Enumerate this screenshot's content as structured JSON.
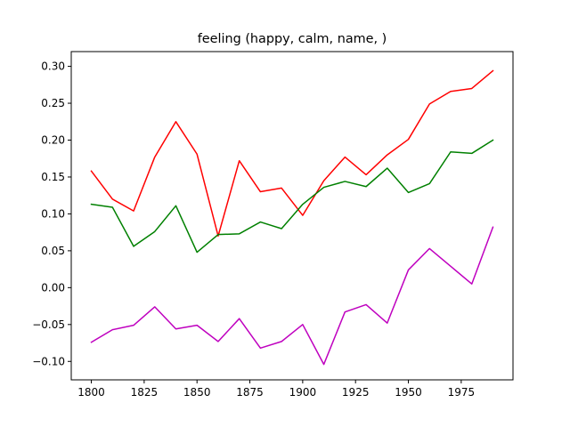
{
  "chart_data": {
    "type": "line",
    "title": "feeling (happy, calm, name, )",
    "xlabel": "",
    "ylabel": "",
    "x": [
      1800,
      1810,
      1820,
      1830,
      1840,
      1850,
      1860,
      1870,
      1880,
      1890,
      1900,
      1910,
      1920,
      1930,
      1940,
      1950,
      1960,
      1970,
      1980,
      1990
    ],
    "xlim": [
      1790.5,
      1999.5
    ],
    "ylim": [
      -0.125,
      0.32
    ],
    "xticks": [
      1800,
      1825,
      1850,
      1875,
      1900,
      1925,
      1950,
      1975
    ],
    "yticks": [
      -0.1,
      -0.05,
      0.0,
      0.05,
      0.1,
      0.15,
      0.2,
      0.25,
      0.3
    ],
    "ytick_labels": [
      "−0.10",
      "−0.05",
      "0.00",
      "0.05",
      "0.10",
      "0.15",
      "0.20",
      "0.25",
      "0.30"
    ],
    "grid": false,
    "legend": "none",
    "series": [
      {
        "color": "#ff0000",
        "values": [
          0.158,
          0.12,
          0.104,
          0.177,
          0.225,
          0.181,
          0.07,
          0.172,
          0.13,
          0.135,
          0.098,
          0.145,
          0.177,
          0.153,
          0.18,
          0.201,
          0.249,
          0.266,
          0.27,
          0.294
        ]
      },
      {
        "color": "#008000",
        "values": [
          0.113,
          0.109,
          0.056,
          0.076,
          0.111,
          0.048,
          0.072,
          0.073,
          0.089,
          0.08,
          0.113,
          0.136,
          0.144,
          0.137,
          0.162,
          0.129,
          0.141,
          0.184,
          0.182,
          0.2
        ]
      },
      {
        "color": "#bf00bf",
        "values": [
          -0.074,
          -0.057,
          -0.051,
          -0.026,
          -0.056,
          -0.051,
          -0.073,
          -0.042,
          -0.082,
          -0.073,
          -0.05,
          -0.104,
          -0.033,
          -0.023,
          -0.048,
          0.024,
          0.053,
          0.029,
          0.005,
          0.082
        ]
      }
    ]
  }
}
